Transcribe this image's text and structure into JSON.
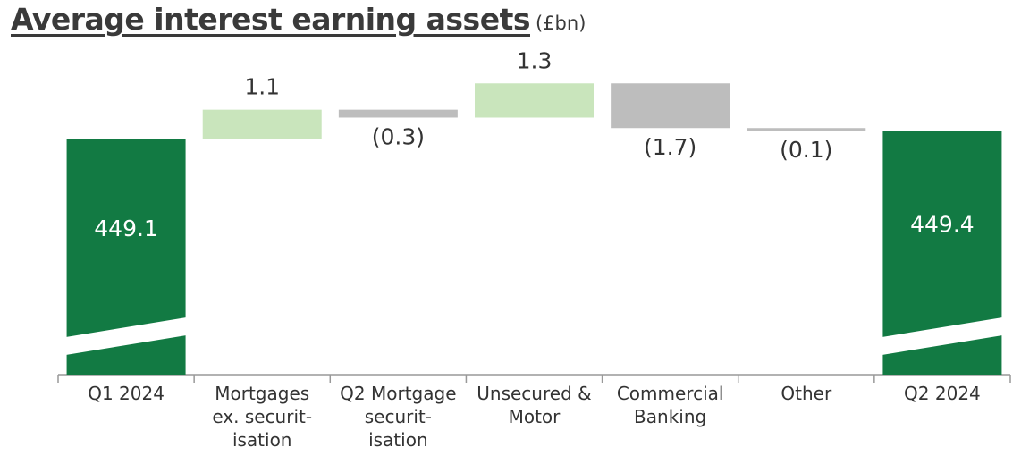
{
  "title": "Average interest earning assets",
  "unit": "(£bn)",
  "colors": {
    "total": "#127a43",
    "increase": "#c9e5bc",
    "decrease": "#bdbdbd",
    "axis": "#999999",
    "text": "#333333"
  },
  "chart_data": {
    "type": "bar",
    "subtype": "waterfall",
    "title": "Average interest earning assets",
    "unit": "(£bn)",
    "axis_break": true,
    "categories": [
      [
        "Q1 2024"
      ],
      [
        "Mortgages",
        "ex. securit-",
        "isation"
      ],
      [
        "Q2 Mortgage",
        "securit-",
        "isation"
      ],
      [
        "Unsecured &",
        "Motor"
      ],
      [
        "Commercial",
        "Banking"
      ],
      [
        "Other"
      ],
      [
        "Q2 2024"
      ]
    ],
    "values": [
      449.1,
      1.1,
      -0.3,
      1.3,
      -1.7,
      -0.1,
      449.4
    ],
    "labels": [
      "449.1",
      "1.1",
      "(0.3)",
      "1.3",
      "(1.7)",
      "(0.1)",
      "449.4"
    ],
    "kinds": [
      "total",
      "increase",
      "decrease",
      "increase",
      "decrease",
      "decrease",
      "total"
    ]
  }
}
